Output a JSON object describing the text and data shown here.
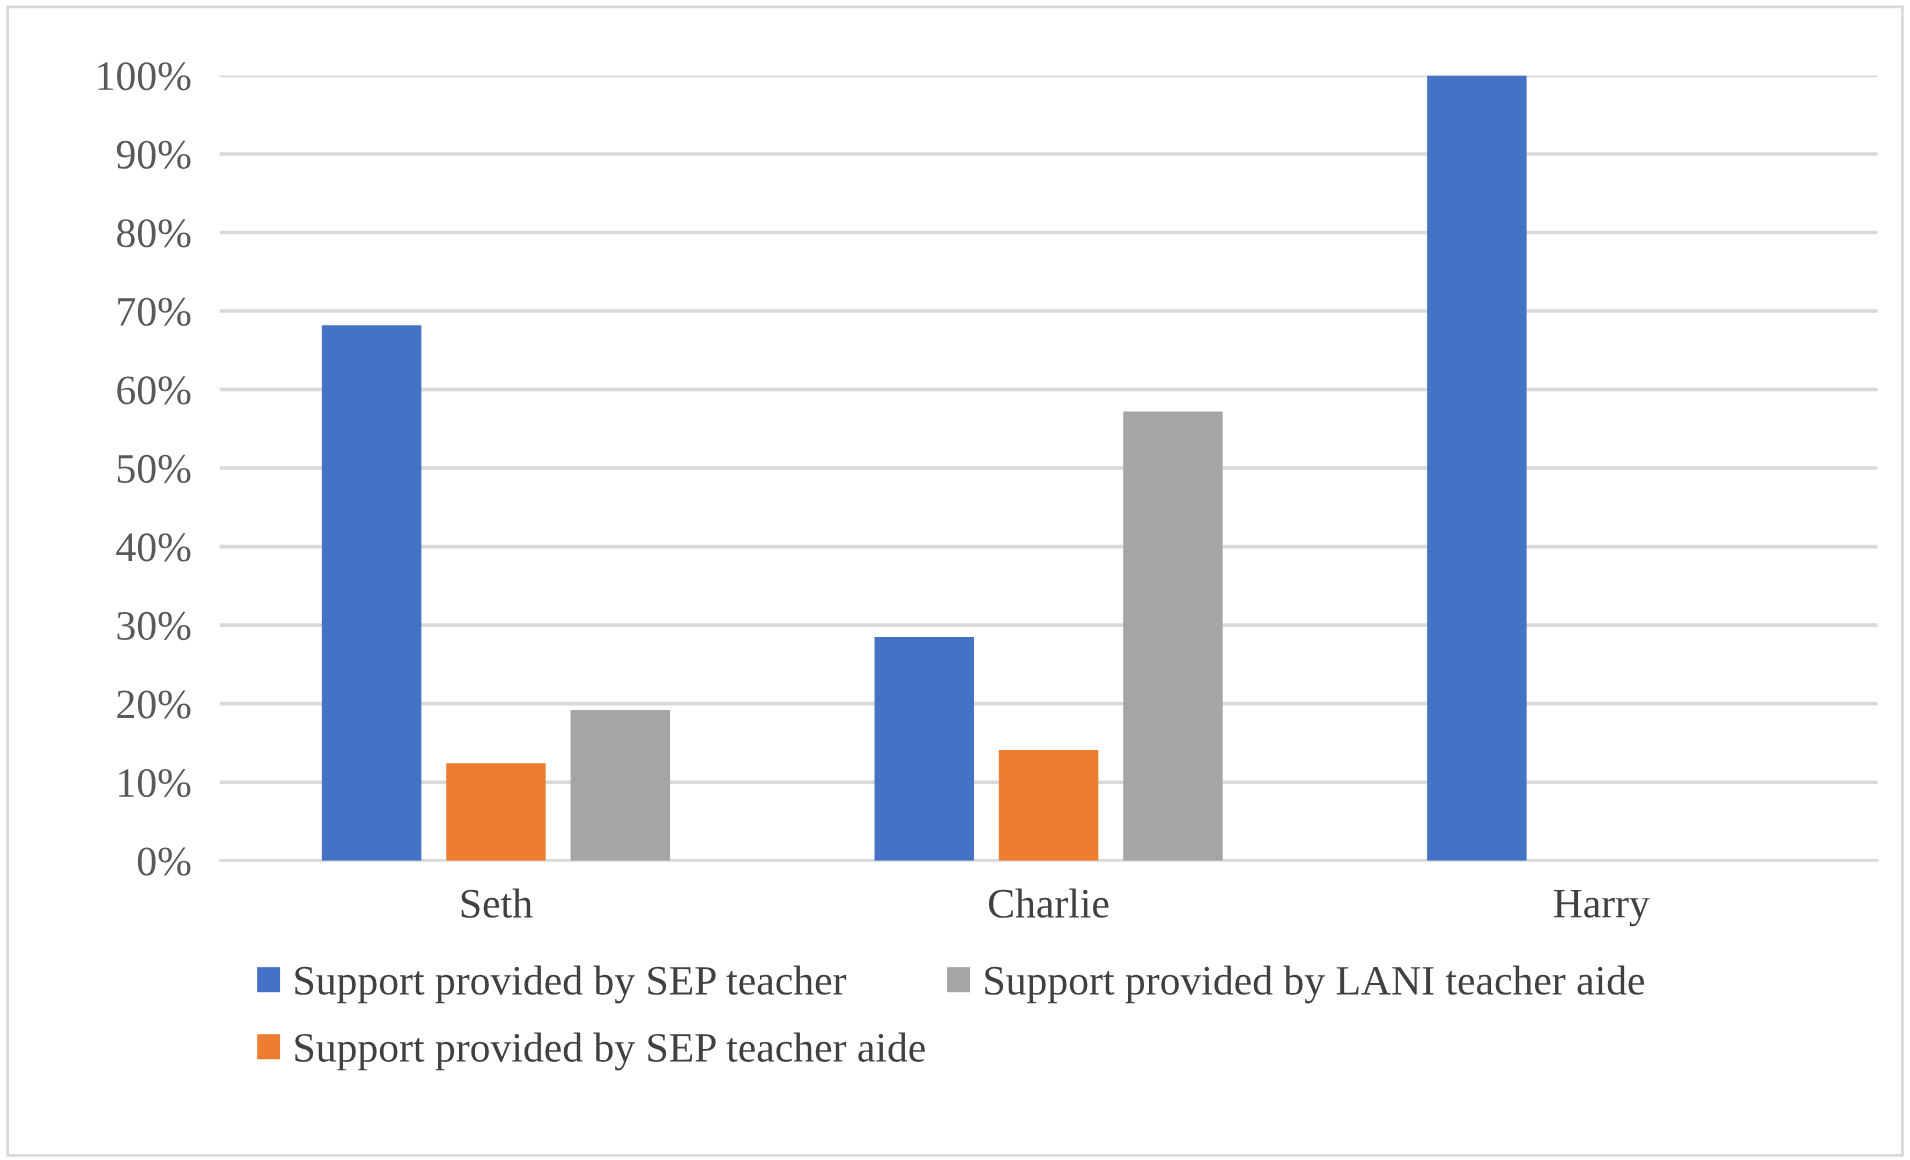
{
  "chart_data": {
    "type": "bar",
    "categories": [
      "Seth",
      "Charlie",
      "Harry"
    ],
    "series": [
      {
        "name": "Support provided by SEP teacher",
        "color": "#4472c4",
        "values": [
          68.2,
          28.5,
          100
        ]
      },
      {
        "name": "Support provided by SEP teacher aide",
        "color": "#ed7d31",
        "values": [
          12.4,
          14.1,
          null
        ]
      },
      {
        "name": "Support provided by LANI teacher aide",
        "color": "#a5a5a5",
        "values": [
          19.2,
          57.2,
          null
        ]
      }
    ],
    "ylim": [
      0,
      100
    ],
    "yticks": [
      {
        "value": 0,
        "label": "0%"
      },
      {
        "value": 10,
        "label": "10%"
      },
      {
        "value": 20,
        "label": "20%"
      },
      {
        "value": 30,
        "label": "30%"
      },
      {
        "value": 40,
        "label": "40%"
      },
      {
        "value": 50,
        "label": "50%"
      },
      {
        "value": 60,
        "label": "60%"
      },
      {
        "value": 70,
        "label": "70%"
      },
      {
        "value": 80,
        "label": "80%"
      },
      {
        "value": 90,
        "label": "90%"
      },
      {
        "value": 100,
        "label": "100%"
      }
    ],
    "grid": "y",
    "legend": "bottom"
  }
}
